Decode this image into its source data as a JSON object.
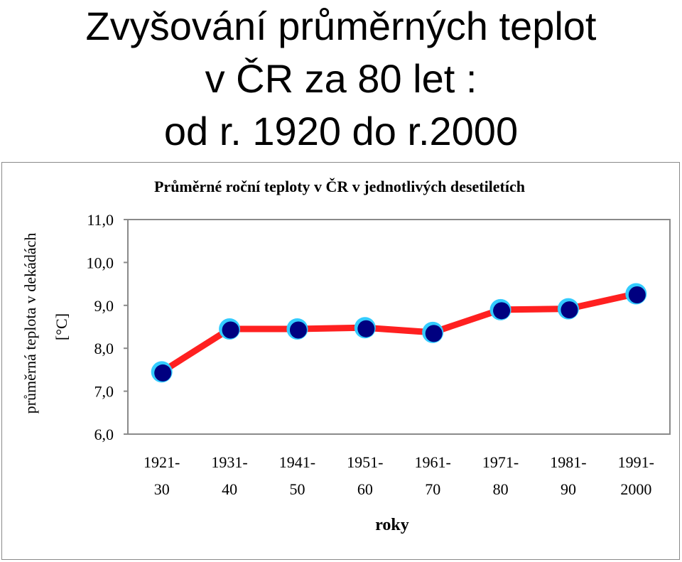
{
  "slide": {
    "title_lines": [
      "Zvyšování průměrných teplot",
      "v ČR za 80 let :",
      "od r. 1920 do r.2000"
    ]
  },
  "chart_data": {
    "type": "line",
    "title": "Průměrné roční teploty v ČR v jednotlivých desetiletích",
    "xlabel": "roky",
    "ylabel": "průměrná teplota v dekádách",
    "ylabel_unit": "[°C]",
    "categories": [
      [
        "1921-",
        "30"
      ],
      [
        "1931-",
        "40"
      ],
      [
        "1941-",
        "50"
      ],
      [
        "1951-",
        "60"
      ],
      [
        "1961-",
        "70"
      ],
      [
        "1971-",
        "80"
      ],
      [
        "1981-",
        "90"
      ],
      [
        "1991-",
        "2000"
      ]
    ],
    "values": [
      7.45,
      8.45,
      8.45,
      8.48,
      8.37,
      8.9,
      8.92,
      9.27
    ],
    "ylim": [
      6.0,
      11.0
    ],
    "yticks": [
      "6,0",
      "7,0",
      "8,0",
      "9,0",
      "10,0",
      "11,0"
    ],
    "grid": false,
    "colors": {
      "line": "#ff2020",
      "marker_fill": "#000080",
      "marker_ring": "#33ccff",
      "plot_border": "#8a8a8a"
    }
  }
}
